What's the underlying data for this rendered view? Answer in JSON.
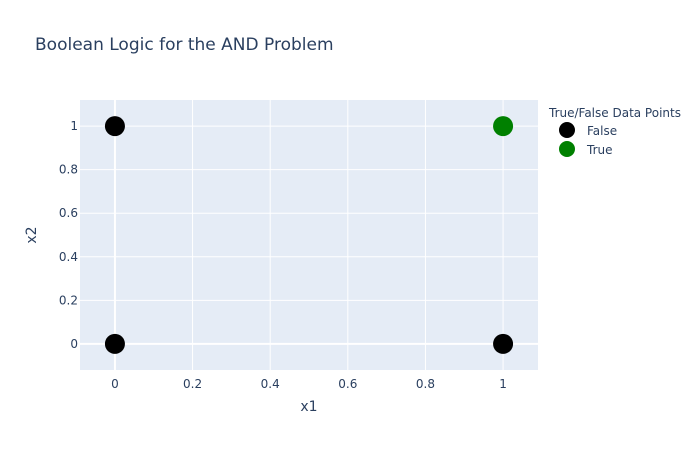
{
  "chart_data": {
    "type": "scatter",
    "title": "Boolean Logic for the AND Problem",
    "xlabel": "x1",
    "ylabel": "x2",
    "xlim": [
      -0.09,
      1.09
    ],
    "ylim": [
      -0.12,
      1.12
    ],
    "grid": true,
    "x_ticks": [
      0,
      0.2,
      0.4,
      0.6,
      0.8,
      1
    ],
    "x_tick_labels": [
      "0",
      "0.2",
      "0.4",
      "0.6",
      "0.8",
      "1"
    ],
    "y_ticks": [
      0,
      0.2,
      0.4,
      0.6,
      0.8,
      1
    ],
    "y_tick_labels": [
      "0",
      "0.2",
      "0.4",
      "0.6",
      "0.8",
      "1"
    ],
    "legend_title": "True/False Data Points",
    "legend_position": "top-right",
    "series": [
      {
        "name": "False",
        "color": "#000000",
        "points": [
          {
            "x": 0,
            "y": 0
          },
          {
            "x": 0,
            "y": 1
          },
          {
            "x": 1,
            "y": 0
          }
        ]
      },
      {
        "name": "True",
        "color": "#008000",
        "points": [
          {
            "x": 1,
            "y": 1
          }
        ]
      }
    ],
    "colors": {
      "plot_background": "#e5ecf6",
      "grid": "#ffffff",
      "text": "#2a3f5f"
    }
  }
}
